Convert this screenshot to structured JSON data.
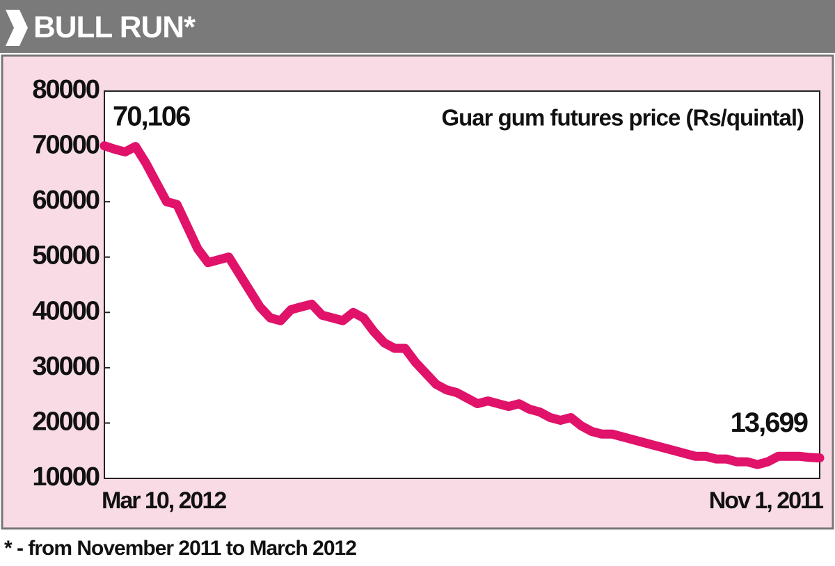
{
  "chart_data": {
    "type": "line",
    "title": "BULL RUN*",
    "annotation": "Guar gum futures price (Rs/quintal)",
    "footnote": "* - from November 2011 to March 2012",
    "categories": [
      "Mar 10, 2012",
      null,
      null,
      null,
      null,
      null,
      null,
      null,
      null,
      null,
      null,
      null,
      null,
      null,
      null,
      null,
      null,
      null,
      null,
      null,
      null,
      null,
      null,
      null,
      null,
      null,
      null,
      null,
      null,
      null,
      null,
      null,
      null,
      null,
      null,
      null,
      null,
      null,
      null,
      null,
      null,
      null,
      null,
      null,
      null,
      null,
      null,
      null,
      null,
      null,
      null,
      null,
      null,
      null,
      null,
      null,
      null,
      null,
      null,
      null,
      null,
      null,
      null,
      null,
      null,
      null,
      null,
      null,
      null,
      "Nov 1, 2011"
    ],
    "values": [
      70106,
      69500,
      69000,
      70000,
      67000,
      63500,
      60000,
      59500,
      55500,
      51500,
      49000,
      49500,
      50000,
      47000,
      44000,
      41000,
      39000,
      38500,
      40500,
      41000,
      41500,
      39500,
      39000,
      38500,
      40000,
      39000,
      36500,
      34500,
      33500,
      33500,
      31000,
      29000,
      27000,
      26000,
      25500,
      24500,
      23500,
      24000,
      23500,
      23000,
      23500,
      22500,
      22000,
      21000,
      20500,
      21000,
      19500,
      18500,
      18000,
      18000,
      17500,
      17000,
      16500,
      16000,
      15500,
      15000,
      14500,
      14000,
      14000,
      13500,
      13500,
      13000,
      13000,
      12500,
      13000,
      14000,
      14000,
      14000,
      13800,
      13699
    ],
    "value_labels": [
      "70,106",
      null,
      null,
      null,
      null,
      null,
      null,
      null,
      null,
      null,
      null,
      null,
      null,
      null,
      null,
      null,
      null,
      null,
      null,
      null,
      null,
      null,
      null,
      null,
      null,
      null,
      null,
      null,
      null,
      null,
      null,
      null,
      null,
      null,
      null,
      null,
      null,
      null,
      null,
      null,
      null,
      null,
      null,
      null,
      null,
      null,
      null,
      null,
      null,
      null,
      null,
      null,
      null,
      null,
      null,
      null,
      null,
      null,
      null,
      null,
      null,
      null,
      null,
      null,
      null,
      null,
      null,
      null,
      null,
      "13,699"
    ],
    "color": "#e0126a",
    "ylim": [
      10000,
      80000
    ],
    "yticks": [
      10000,
      20000,
      30000,
      40000,
      50000,
      60000,
      70000,
      80000
    ],
    "grid": false
  }
}
